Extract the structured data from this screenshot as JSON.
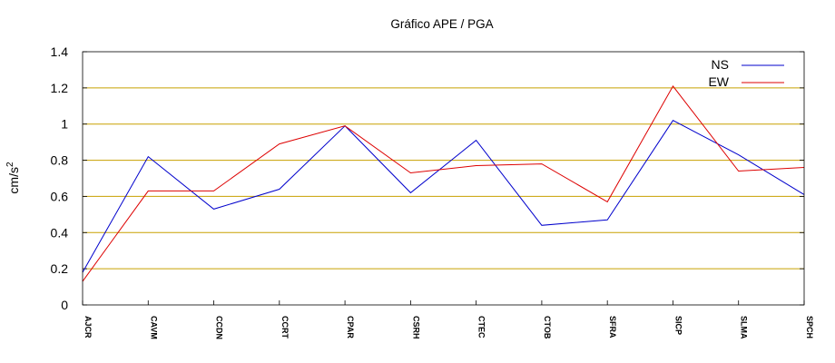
{
  "chart_data": {
    "type": "line",
    "title": "Gráfico  APE / PGA",
    "xlabel": "",
    "ylabel": "cm/s",
    "ylabel_superscript": "2",
    "categories": [
      "AJCR",
      "CAVM",
      "CCDN",
      "CCRT",
      "CPAR",
      "CSRH",
      "CTEC",
      "CTOB",
      "SFRA",
      "SICP",
      "SLMA",
      "SPCH"
    ],
    "ylim": [
      0,
      1.4
    ],
    "yticks": [
      "0",
      "0.2",
      "0.4",
      "0.6",
      "0.8",
      "1",
      "1.2",
      "1.4"
    ],
    "grid": "horizontal",
    "legend_position": "top-right",
    "series": [
      {
        "name": "NS",
        "color": "#0000cc",
        "values": [
          0.18,
          0.82,
          0.53,
          0.64,
          0.99,
          0.62,
          0.91,
          0.44,
          0.47,
          1.02,
          0.83,
          0.61
        ]
      },
      {
        "name": "EW",
        "color": "#dd0000",
        "values": [
          0.13,
          0.63,
          0.63,
          0.89,
          0.99,
          0.73,
          0.77,
          0.78,
          0.57,
          1.21,
          0.74,
          0.76
        ]
      }
    ],
    "grid_color": "#c8a000"
  }
}
